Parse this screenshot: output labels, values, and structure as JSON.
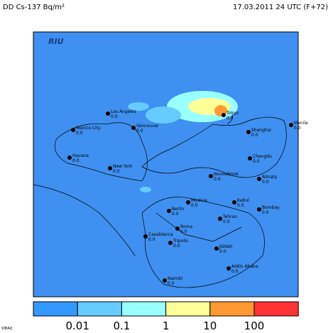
{
  "header": {
    "title": "DD Cs-137 Bq/m²",
    "timestamp": "17.03.2011 24 UTC (F+72)"
  },
  "logo": "RIU",
  "cities": [
    {
      "name": "Los Angeles",
      "value": "0.0"
    },
    {
      "name": "Mexico City",
      "value": "0.0"
    },
    {
      "name": "Vancouver",
      "value": "0.0"
    },
    {
      "name": "Havana",
      "value": "0.0"
    },
    {
      "name": "New York",
      "value": "0.0"
    },
    {
      "name": "Tokyo",
      "value": "0.0"
    },
    {
      "name": "Shanghai",
      "value": "0.0"
    },
    {
      "name": "Manila",
      "value": "0.0"
    },
    {
      "name": "Chengdu",
      "value": "0.0"
    },
    {
      "name": "Novosibirsk",
      "value": "0.0"
    },
    {
      "name": "Almaty",
      "value": "0.0"
    },
    {
      "name": "Moskva",
      "value": "0.0"
    },
    {
      "name": "Kabul",
      "value": "0.0"
    },
    {
      "name": "Bombay",
      "value": "0.0"
    },
    {
      "name": "Berlin",
      "value": "0.0"
    },
    {
      "name": "Tehran",
      "value": "0.0"
    },
    {
      "name": "Roma",
      "value": "0.0"
    },
    {
      "name": "Casablanca",
      "value": "0.0"
    },
    {
      "name": "Tripolis",
      "value": "0.0"
    },
    {
      "name": "Jiddah",
      "value": "0.0"
    },
    {
      "name": "Addis Abeba",
      "value": "0.0"
    },
    {
      "name": "Nairobi",
      "value": "0.0"
    }
  ],
  "colorbar": {
    "labels": [
      "0.01",
      "0.1",
      "1",
      "10",
      "100"
    ]
  },
  "footer": "VIBAQ"
}
